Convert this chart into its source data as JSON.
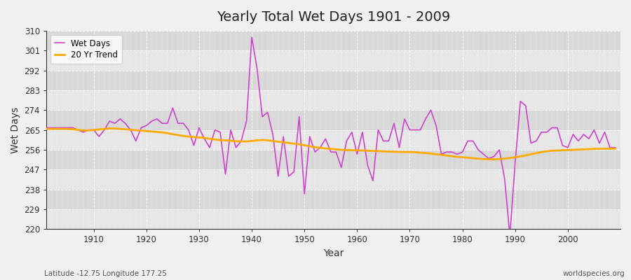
{
  "title": "Yearly Total Wet Days 1901 - 2009",
  "xlabel": "Year",
  "ylabel": "Wet Days",
  "fig_bg_color": "#f0f0f0",
  "plot_bg_color": "#e0e0e0",
  "band_color_dark": "#d8d8d8",
  "band_color_light": "#e6e6e6",
  "wet_days_color": "#cc44cc",
  "trend_color": "#ffaa00",
  "subtitle_left": "Latitude -12.75 Longitude 177.25",
  "subtitle_right": "worldspecies.org",
  "ylim": [
    220,
    310
  ],
  "yticks": [
    220,
    229,
    238,
    247,
    256,
    265,
    274,
    283,
    292,
    301,
    310
  ],
  "xticks": [
    1910,
    1920,
    1930,
    1940,
    1950,
    1960,
    1970,
    1980,
    1990,
    2000
  ],
  "xlim": [
    1901,
    2010
  ],
  "years": [
    1901,
    1902,
    1903,
    1904,
    1905,
    1906,
    1907,
    1908,
    1909,
    1910,
    1911,
    1912,
    1913,
    1914,
    1915,
    1916,
    1917,
    1918,
    1919,
    1920,
    1921,
    1922,
    1923,
    1924,
    1925,
    1926,
    1927,
    1928,
    1929,
    1930,
    1931,
    1932,
    1933,
    1934,
    1935,
    1936,
    1937,
    1938,
    1939,
    1940,
    1941,
    1942,
    1943,
    1944,
    1945,
    1946,
    1947,
    1948,
    1949,
    1950,
    1951,
    1952,
    1953,
    1954,
    1955,
    1956,
    1957,
    1958,
    1959,
    1960,
    1961,
    1962,
    1963,
    1964,
    1965,
    1966,
    1967,
    1968,
    1969,
    1970,
    1971,
    1972,
    1973,
    1974,
    1975,
    1976,
    1977,
    1978,
    1979,
    1980,
    1981,
    1982,
    1983,
    1984,
    1985,
    1986,
    1987,
    1988,
    1989,
    1990,
    1991,
    1992,
    1993,
    1994,
    1995,
    1996,
    1997,
    1998,
    1999,
    2000,
    2001,
    2002,
    2003,
    2004,
    2005,
    2006,
    2007,
    2008,
    2009
  ],
  "wet_days": [
    266,
    266,
    266,
    266,
    266,
    266,
    265,
    264,
    265,
    265,
    262,
    265,
    269,
    268,
    270,
    268,
    265,
    260,
    266,
    267,
    269,
    270,
    268,
    268,
    275,
    268,
    268,
    265,
    258,
    266,
    261,
    257,
    265,
    264,
    245,
    265,
    257,
    260,
    269,
    307,
    293,
    271,
    273,
    263,
    244,
    262,
    244,
    246,
    271,
    236,
    262,
    255,
    257,
    261,
    255,
    255,
    248,
    260,
    264,
    254,
    264,
    249,
    242,
    265,
    260,
    260,
    268,
    257,
    270,
    265,
    265,
    265,
    270,
    274,
    267,
    254,
    255,
    255,
    254,
    255,
    260,
    260,
    256,
    254,
    252,
    253,
    256,
    243,
    217,
    250,
    278,
    276,
    259,
    260,
    264,
    264,
    266,
    266,
    258,
    257,
    263,
    260,
    263,
    261,
    265,
    259,
    264,
    257,
    257
  ],
  "trend": [
    265.5,
    265.5,
    265.5,
    265.5,
    265.5,
    265.3,
    265.0,
    264.8,
    264.8,
    265.0,
    265.2,
    265.5,
    265.7,
    265.7,
    265.5,
    265.3,
    265.1,
    264.9,
    264.7,
    264.5,
    264.3,
    264.1,
    263.9,
    263.5,
    263.1,
    262.7,
    262.3,
    262.0,
    261.8,
    261.6,
    261.4,
    261.0,
    260.7,
    260.4,
    260.3,
    260.1,
    259.9,
    259.8,
    259.8,
    260.0,
    260.3,
    260.5,
    260.3,
    260.0,
    259.7,
    259.4,
    259.1,
    258.8,
    258.5,
    258.1,
    257.6,
    257.2,
    256.9,
    256.6,
    256.4,
    256.2,
    256.0,
    255.9,
    255.8,
    255.8,
    255.7,
    255.6,
    255.5,
    255.4,
    255.3,
    255.2,
    255.1,
    255.0,
    255.0,
    255.0,
    254.9,
    254.7,
    254.5,
    254.3,
    254.0,
    253.7,
    253.4,
    253.1,
    252.8,
    252.6,
    252.4,
    252.2,
    252.0,
    251.8,
    251.7,
    251.7,
    251.8,
    252.0,
    252.3,
    252.6,
    253.0,
    253.5,
    254.0,
    254.5,
    255.0,
    255.3,
    255.6,
    255.7,
    255.8,
    255.9,
    256.0,
    256.1,
    256.2,
    256.3,
    256.4,
    256.5,
    256.5,
    256.5,
    256.5
  ]
}
